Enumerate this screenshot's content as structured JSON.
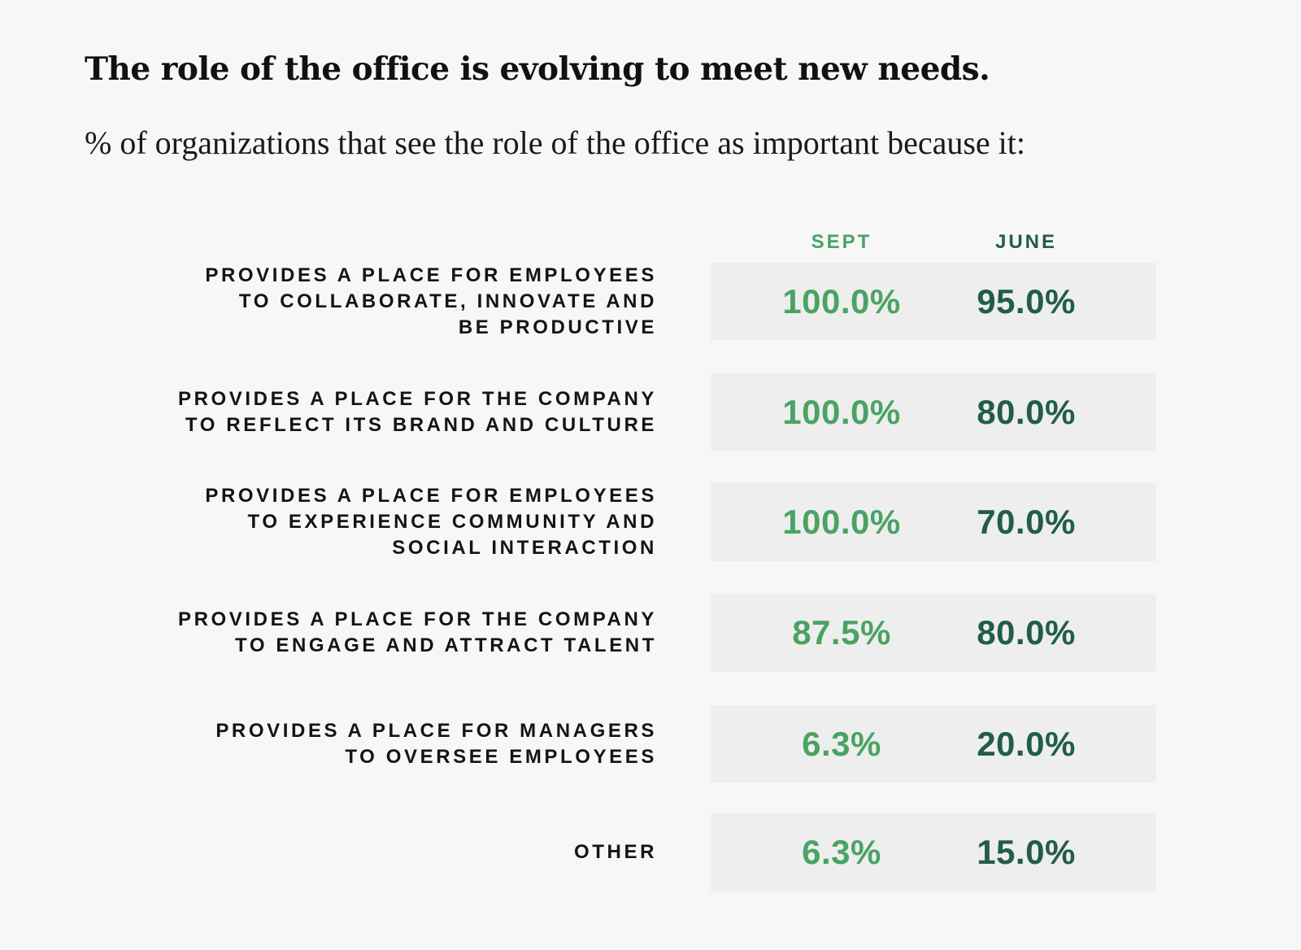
{
  "title": "The role of the office is evolving to meet new needs.",
  "subtitle": "% of organizations that see the role of the office as important because it:",
  "colors": {
    "sept": "#4aa363",
    "june": "#215e45",
    "row_background": "#eeeeee",
    "page_background": "#f7f7f7"
  },
  "chart_data": {
    "type": "table",
    "title": "The role of the office is evolving to meet new needs.",
    "subtitle": "% of organizations that see the role of the office as important because it:",
    "columns": [
      "SEPT",
      "JUNE"
    ],
    "rows": [
      {
        "label": "PROVIDES A PLACE FOR EMPLOYEES\nTO COLLABORATE, INNOVATE AND\nBE PRODUCTIVE",
        "sept": "100.0%",
        "june": "95.0%"
      },
      {
        "label": "PROVIDES A PLACE FOR THE COMPANY\nTO REFLECT ITS BRAND AND CULTURE",
        "sept": "100.0%",
        "june": "80.0%"
      },
      {
        "label": "PROVIDES A PLACE FOR EMPLOYEES\nTO EXPERIENCE COMMUNITY AND\nSOCIAL INTERACTION",
        "sept": "100.0%",
        "june": "70.0%"
      },
      {
        "label": "PROVIDES A PLACE FOR THE COMPANY\nTO ENGAGE AND ATTRACT TALENT",
        "sept": "87.5%",
        "june": "80.0%"
      },
      {
        "label": "PROVIDES A PLACE FOR MANAGERS\nTO OVERSEE EMPLOYEES",
        "sept": "6.3%",
        "june": "20.0%"
      },
      {
        "label": "OTHER",
        "sept": "6.3%",
        "june": "15.0%"
      }
    ]
  }
}
